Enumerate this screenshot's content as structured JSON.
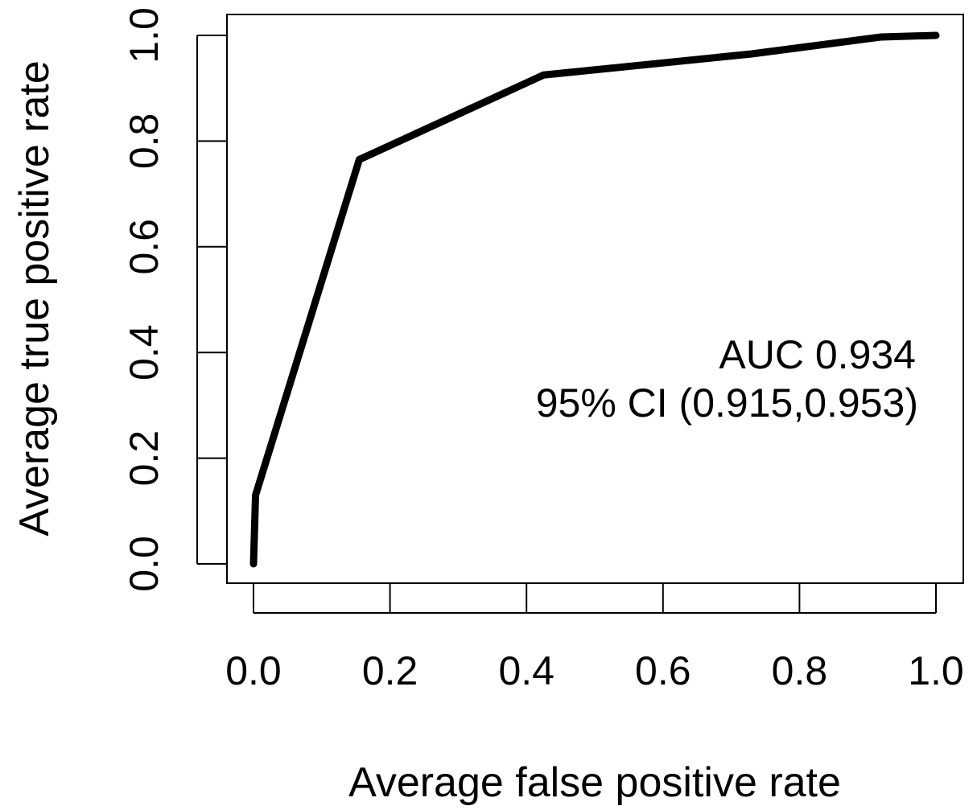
{
  "chart_data": {
    "type": "line",
    "title": "",
    "xlabel": "Average false positive rate",
    "ylabel": "Average true positive rate",
    "xlim": [
      0,
      1
    ],
    "ylim": [
      0,
      1
    ],
    "x_ticks": [
      0.0,
      0.2,
      0.4,
      0.6,
      0.8,
      1.0
    ],
    "y_ticks": [
      0.0,
      0.2,
      0.4,
      0.6,
      0.8,
      1.0
    ],
    "x_tick_labels": [
      "0.0",
      "0.2",
      "0.4",
      "0.6",
      "0.8",
      "1.0"
    ],
    "y_tick_labels": [
      "0.0",
      "0.2",
      "0.4",
      "0.6",
      "0.8",
      "1.0"
    ],
    "grid": false,
    "legend": "none",
    "series": [
      {
        "color": "#000000",
        "x": [
          0.0,
          0.003,
          0.155,
          0.425,
          0.73,
          0.92,
          1.0
        ],
        "y": [
          0.0,
          0.13,
          0.765,
          0.925,
          0.965,
          0.997,
          1.0
        ]
      }
    ],
    "annotations": {
      "line1": "AUC 0.934",
      "line2": "95% CI (0.915,0.953)"
    }
  }
}
